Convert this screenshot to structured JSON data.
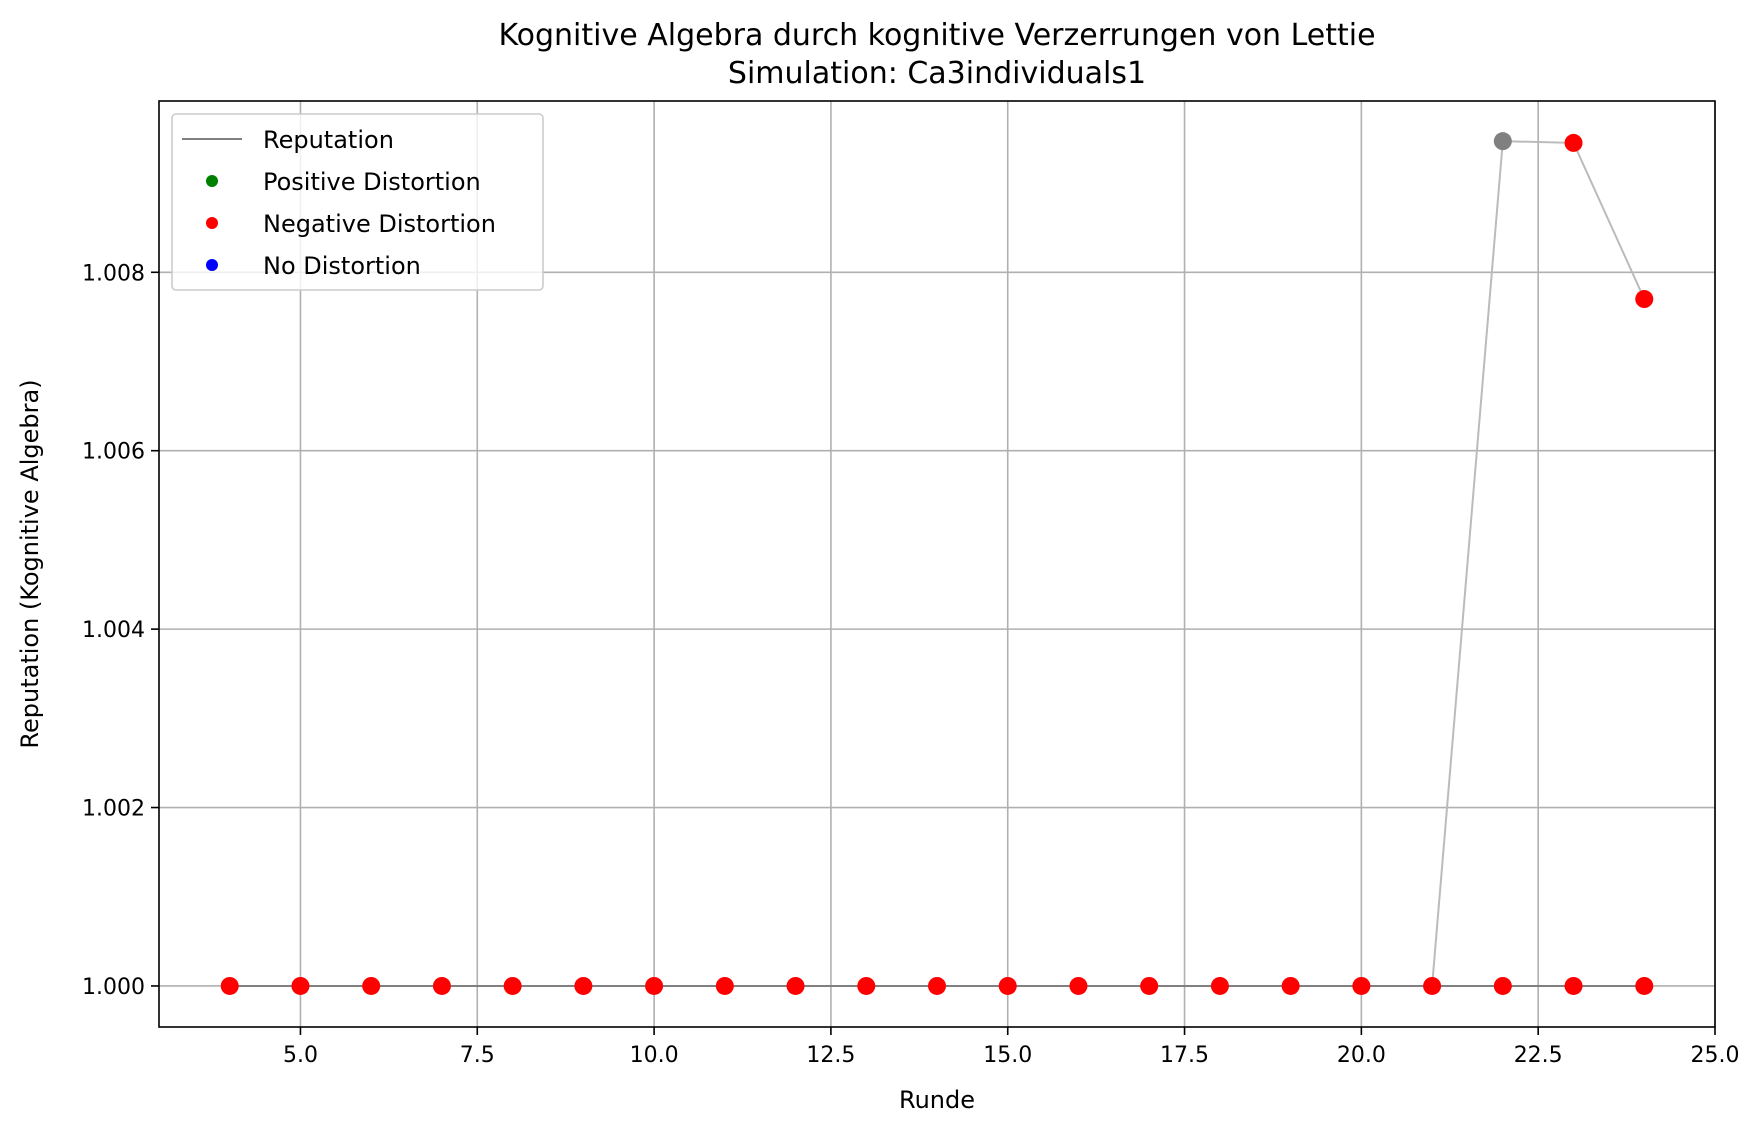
{
  "chart_data": {
    "type": "line",
    "title": "Kognitive Algebra durch kognitive Verzerrungen von Lettie",
    "subtitle": "Simulation: Ca3individuals1",
    "xlabel": "Runde",
    "ylabel": "Reputation (Kognitive Algebra)",
    "xlim": [
      3,
      25
    ],
    "ylim": [
      0.99954,
      1.00992
    ],
    "x_ticks": [
      5.0,
      7.5,
      10.0,
      12.5,
      15.0,
      17.5,
      20.0,
      22.5,
      25.0
    ],
    "x_tick_labels": [
      "5.0",
      "7.5",
      "10.0",
      "12.5",
      "15.0",
      "17.5",
      "20.0",
      "22.5",
      "25.0"
    ],
    "y_ticks": [
      1.0,
      1.002,
      1.004,
      1.006,
      1.008
    ],
    "y_tick_labels": [
      "1.000",
      "1.002",
      "1.004",
      "1.006",
      "1.008"
    ],
    "grid": true,
    "legend_position": "top-left",
    "legend": [
      {
        "label": "Reputation",
        "kind": "line",
        "color": "#808080"
      },
      {
        "label": "Positive Distortion",
        "kind": "marker",
        "color": "#008000"
      },
      {
        "label": "Negative Distortion",
        "kind": "marker",
        "color": "#ff0000"
      },
      {
        "label": "No Distortion",
        "kind": "marker",
        "color": "#0000ff"
      }
    ],
    "series": [
      {
        "name": "Reputation",
        "role": "baseline",
        "color": "#808080",
        "x": [
          4,
          5,
          6,
          7,
          8,
          9,
          10,
          11,
          12,
          13,
          14,
          15,
          16,
          17,
          18,
          19,
          20,
          21,
          22,
          23,
          24
        ],
        "y": [
          1.0,
          1.0,
          1.0,
          1.0,
          1.0,
          1.0,
          1.0,
          1.0,
          1.0,
          1.0,
          1.0,
          1.0,
          1.0,
          1.0,
          1.0,
          1.0,
          1.0,
          1.0,
          1.0,
          1.0,
          1.0
        ]
      },
      {
        "role": "distorted",
        "color": "#bbbbbb",
        "x": [
          4,
          5,
          6,
          7,
          8,
          9,
          10,
          11,
          12,
          13,
          14,
          15,
          16,
          17,
          18,
          19,
          20,
          21,
          22,
          23,
          24
        ],
        "y": [
          1.0,
          1.0,
          1.0,
          1.0,
          1.0,
          1.0,
          1.0,
          1.0,
          1.0,
          1.0,
          1.0,
          1.0,
          1.0,
          1.0,
          1.0,
          1.0,
          1.0,
          1.0,
          1.00947,
          1.00945,
          1.0077
        ]
      }
    ],
    "markers": [
      {
        "x": 4,
        "y": 1.0,
        "color": "#ff0000"
      },
      {
        "x": 5,
        "y": 1.0,
        "color": "#ff0000"
      },
      {
        "x": 6,
        "y": 1.0,
        "color": "#ff0000"
      },
      {
        "x": 7,
        "y": 1.0,
        "color": "#ff0000"
      },
      {
        "x": 8,
        "y": 1.0,
        "color": "#ff0000"
      },
      {
        "x": 9,
        "y": 1.0,
        "color": "#ff0000"
      },
      {
        "x": 10,
        "y": 1.0,
        "color": "#ff0000"
      },
      {
        "x": 11,
        "y": 1.0,
        "color": "#ff0000"
      },
      {
        "x": 12,
        "y": 1.0,
        "color": "#ff0000"
      },
      {
        "x": 13,
        "y": 1.0,
        "color": "#ff0000"
      },
      {
        "x": 14,
        "y": 1.0,
        "color": "#ff0000"
      },
      {
        "x": 15,
        "y": 1.0,
        "color": "#ff0000"
      },
      {
        "x": 16,
        "y": 1.0,
        "color": "#ff0000"
      },
      {
        "x": 17,
        "y": 1.0,
        "color": "#ff0000"
      },
      {
        "x": 18,
        "y": 1.0,
        "color": "#ff0000"
      },
      {
        "x": 19,
        "y": 1.0,
        "color": "#ff0000"
      },
      {
        "x": 20,
        "y": 1.0,
        "color": "#ff0000"
      },
      {
        "x": 21,
        "y": 1.0,
        "color": "#ff0000"
      },
      {
        "x": 22,
        "y": 1.0,
        "color": "#ff0000"
      },
      {
        "x": 23,
        "y": 1.0,
        "color": "#ff0000"
      },
      {
        "x": 24,
        "y": 1.0,
        "color": "#ff0000"
      },
      {
        "x": 22,
        "y": 1.00947,
        "color": "#808080"
      },
      {
        "x": 23,
        "y": 1.00945,
        "color": "#ff0000"
      },
      {
        "x": 24,
        "y": 1.0077,
        "color": "#ff0000"
      }
    ]
  }
}
